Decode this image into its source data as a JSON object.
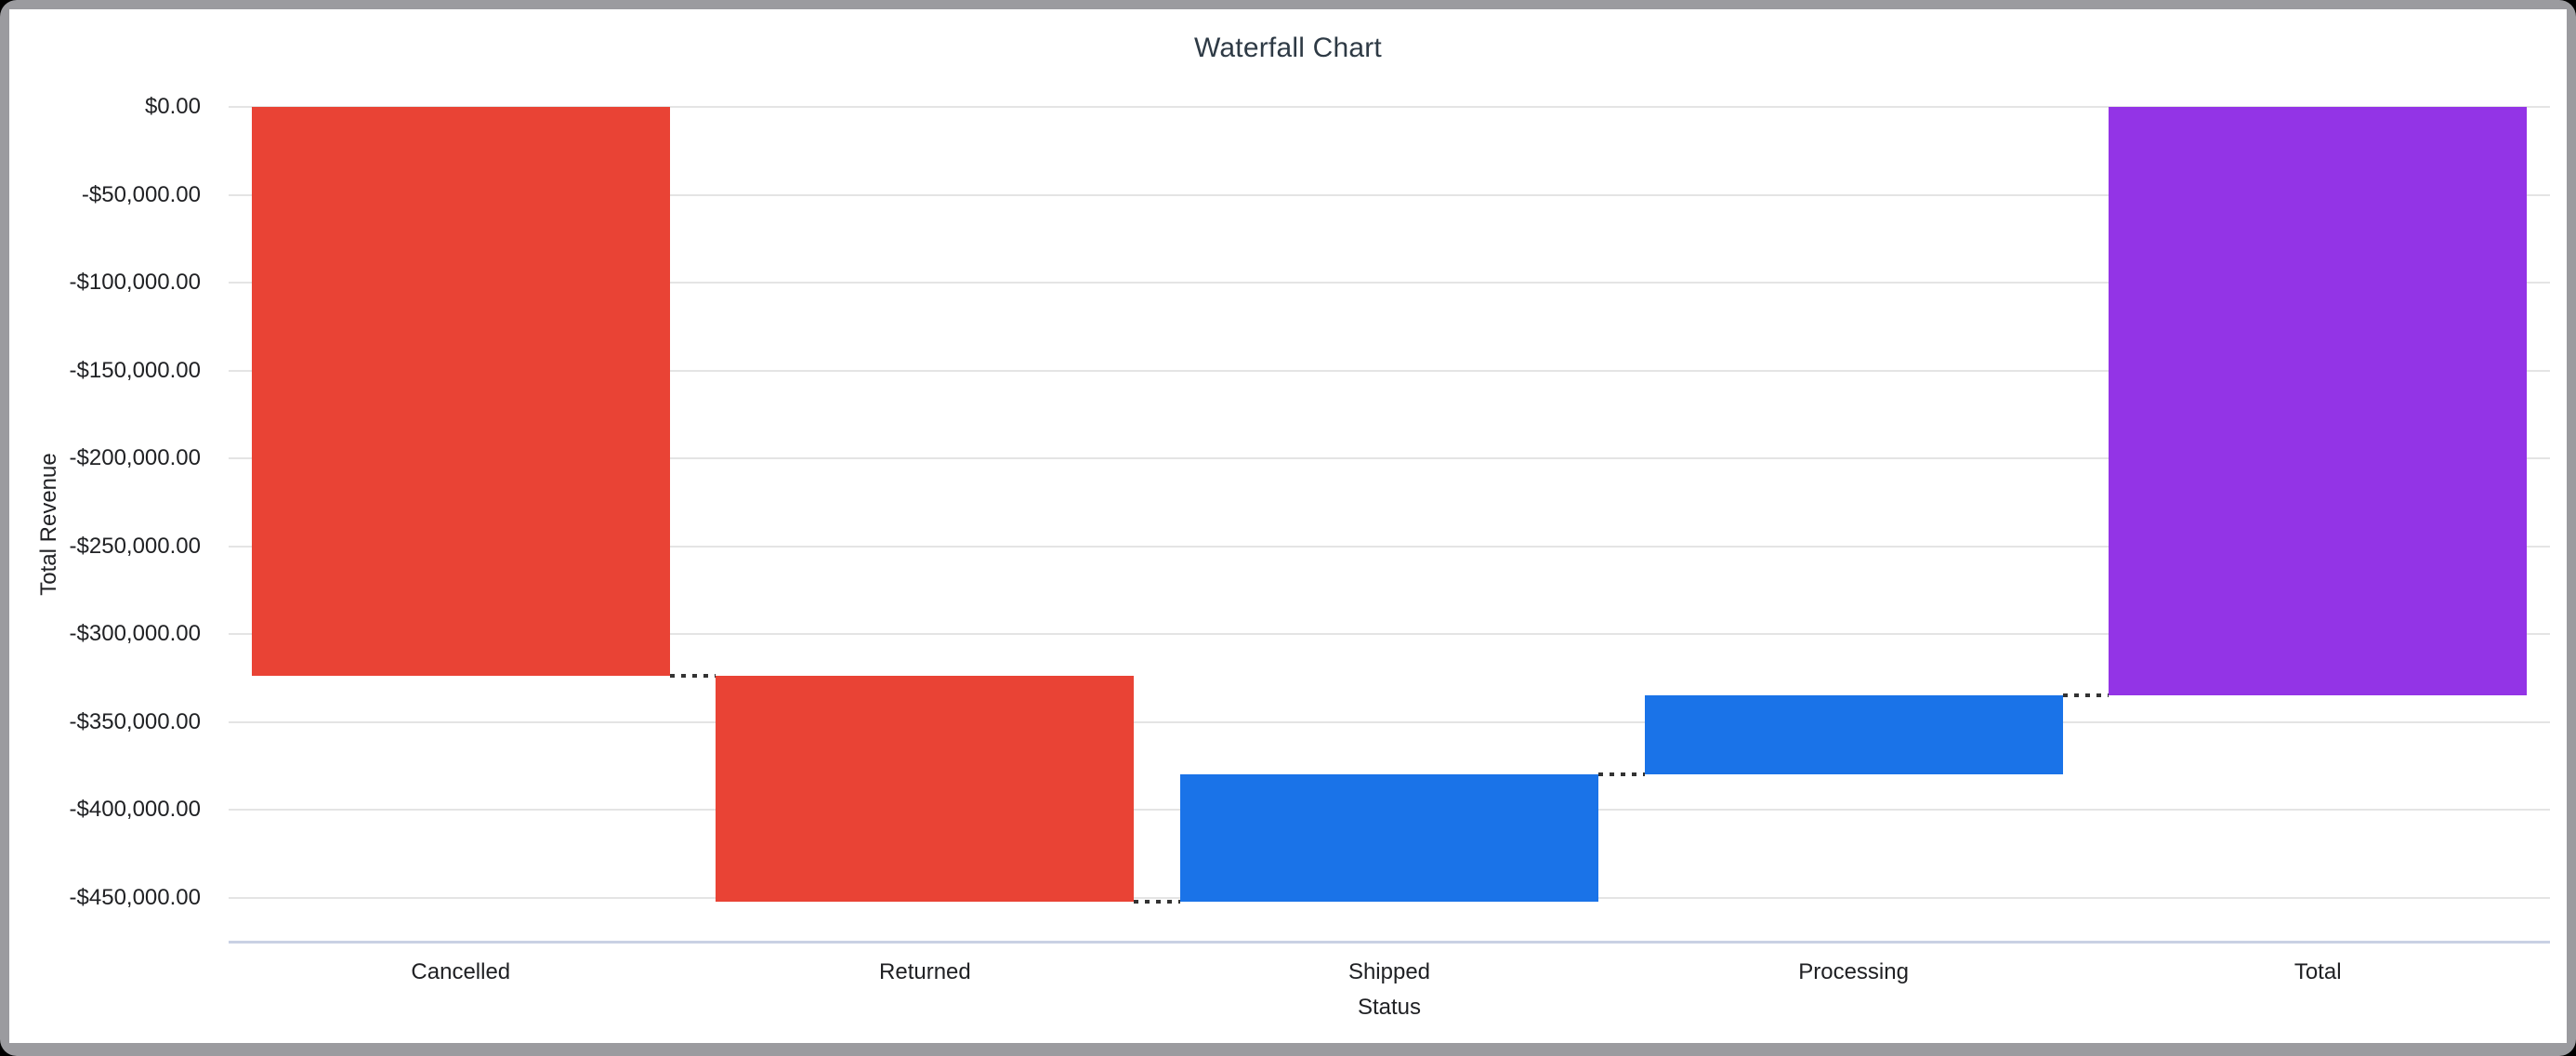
{
  "window": {
    "frame_color": "#9b9b9f",
    "outer_background": "#000000",
    "card_background": "#ffffff"
  },
  "colors": {
    "gridline": "#e4e4e4",
    "axis_line": "#c9d1e4",
    "connector": "#333333",
    "title_text": "#2e3a45",
    "tick_text": "#202124",
    "axis_title_text": "#202124",
    "decrease_bar": "#E94335",
    "increase_bar": "#1A73E8",
    "total_bar": "#9334E6"
  },
  "chart_data": {
    "type": "bar",
    "subtype": "waterfall",
    "title": "Waterfall Chart",
    "xlabel": "Status",
    "ylabel": "Total Revenue",
    "grid": true,
    "legend": "none",
    "connector_style": "dotted",
    "categories": [
      "Cancelled",
      "Returned",
      "Shipped",
      "Processing",
      "Total"
    ],
    "bars": [
      {
        "label": "Cancelled",
        "delta": -323800,
        "start": 0,
        "end": -323800,
        "role": "decrease",
        "color": "#E94335"
      },
      {
        "label": "Returned",
        "delta": -128600,
        "start": -323800,
        "end": -452400,
        "role": "decrease",
        "color": "#E94335"
      },
      {
        "label": "Shipped",
        "delta": 72500,
        "start": -452400,
        "end": -379900,
        "role": "increase",
        "color": "#1A73E8"
      },
      {
        "label": "Processing",
        "delta": 45000,
        "start": -379900,
        "end": -334900,
        "role": "increase",
        "color": "#1A73E8"
      },
      {
        "label": "Total",
        "delta": -334900,
        "start": 0,
        "end": -334900,
        "role": "total",
        "color": "#9334E6"
      }
    ],
    "y_axis": {
      "min": -475000,
      "max": 0,
      "ticks": [
        {
          "value": 0,
          "label": "$0.00"
        },
        {
          "value": -50000,
          "label": "-$50,000.00"
        },
        {
          "value": -100000,
          "label": "-$100,000.00"
        },
        {
          "value": -150000,
          "label": "-$150,000.00"
        },
        {
          "value": -200000,
          "label": "-$200,000.00"
        },
        {
          "value": -250000,
          "label": "-$250,000.00"
        },
        {
          "value": -300000,
          "label": "-$300,000.00"
        },
        {
          "value": -350000,
          "label": "-$350,000.00"
        },
        {
          "value": -400000,
          "label": "-$400,000.00"
        },
        {
          "value": -450000,
          "label": "-$450,000.00"
        }
      ]
    }
  }
}
